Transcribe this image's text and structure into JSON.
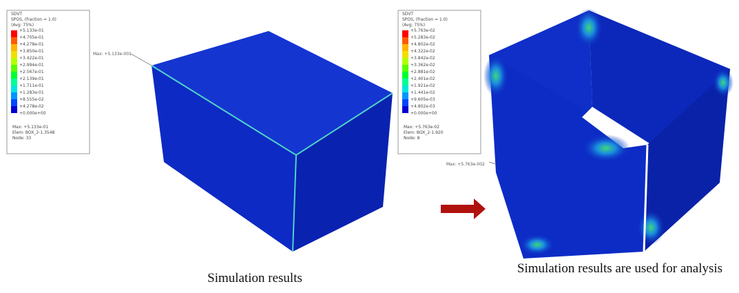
{
  "left_panel": {
    "legend": {
      "variable": "SDVT",
      "section": "SPOS, (fraction = 1.0)",
      "averaging": "(Avg: 75%)",
      "values": [
        "+5.133e-01",
        "+4.705e-01",
        "+4.278e-01",
        "+3.850e-01",
        "+3.422e-01",
        "+2.994e-01",
        "+2.567e-01",
        "+2.139e-01",
        "+1.711e-01",
        "+1.283e-01",
        "+8.555e-02",
        "+4.278e-02",
        "+0.000e+00"
      ],
      "footer": [
        "Max: +5.133e-01",
        "Elem: BOX_2-1.3548",
        "Node: 33"
      ]
    },
    "max_callout": "Max: +5.133e-001",
    "caption": "Simulation results"
  },
  "right_panel": {
    "legend": {
      "variable": "SDVT",
      "section": "SPOS, (fraction = 1.0)",
      "averaging": "(Avg: 75%)",
      "values": [
        "+5.763e-02",
        "+5.283e-02",
        "+4.802e-02",
        "+4.322e-02",
        "+3.842e-02",
        "+3.362e-02",
        "+2.881e-02",
        "+2.401e-02",
        "+1.921e-02",
        "+1.441e-02",
        "+9.605e-03",
        "+4.802e-03",
        "+0.000e+00"
      ],
      "footer": [
        "Max: +5.763e-02",
        "Elem: BOX_2-1.920",
        "Node: 8"
      ]
    },
    "max_callout": "Max: +5.763e-002",
    "caption": "Simulation results are used for analysis"
  }
}
